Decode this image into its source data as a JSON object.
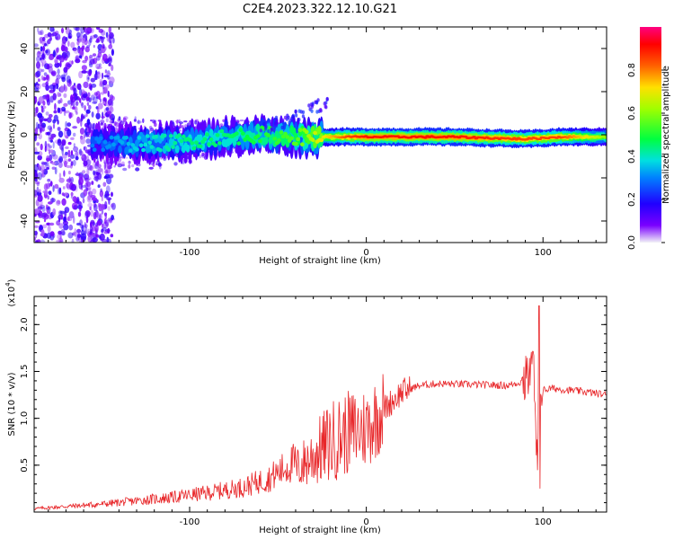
{
  "title": "C2E4.2023.322.12.10.G21",
  "colors": {
    "snr_line": "#e8272a",
    "axis": "#000000",
    "spectrogram_bg": "#ffffff"
  },
  "chart_data": [
    {
      "type": "heatmap",
      "title": "C2E4.2023.322.12.10.G21",
      "xlabel": "Height of straight line (km)",
      "ylabel": "Frequency (Hz)",
      "xlim": [
        -188,
        136
      ],
      "ylim": [
        -50,
        50
      ],
      "xticks": [
        -100,
        0,
        100
      ],
      "yticks": [
        -40,
        -20,
        0,
        20,
        40
      ],
      "colorbar": {
        "label": "Normalized spectral amplitude",
        "range": [
          0.0,
          1.0
        ],
        "ticks": [
          0.0,
          0.2,
          0.4,
          0.6,
          0.8
        ],
        "colormap": "rainbow (purple-blue-cyan-green-yellow-red-magenta)"
      },
      "ridge": {
        "description": "main spectral ridge near 0 Hz",
        "points": [
          {
            "x": -150,
            "y": -4,
            "amp": 0.3
          },
          {
            "x": -120,
            "y": -4,
            "amp": 0.4
          },
          {
            "x": -100,
            "y": -3,
            "amp": 0.45
          },
          {
            "x": -80,
            "y": -1,
            "amp": 0.45
          },
          {
            "x": -60,
            "y": 0,
            "amp": 0.5
          },
          {
            "x": -40,
            "y": -1,
            "amp": 0.55
          },
          {
            "x": -25,
            "y": -1,
            "amp": 0.7
          },
          {
            "x": -10,
            "y": -1,
            "amp": 0.85
          },
          {
            "x": 0,
            "y": -1,
            "amp": 0.9
          },
          {
            "x": 50,
            "y": -1,
            "amp": 0.9
          },
          {
            "x": 90,
            "y": -2,
            "amp": 0.85
          },
          {
            "x": 110,
            "y": -1,
            "amp": 0.85
          },
          {
            "x": 136,
            "y": -1,
            "amp": 0.6
          }
        ]
      }
    },
    {
      "type": "line",
      "xlabel": "Height of straight line (km)",
      "ylabel": "SNR (10 * v/v)",
      "y_scale_label": "(x10",
      "y_scale_exponent": "4",
      "xlim": [
        -188,
        136
      ],
      "ylim": [
        0,
        2.3
      ],
      "xticks": [
        -100,
        0,
        100
      ],
      "yticks": [
        0.5,
        1.0,
        1.5,
        2.0
      ],
      "ytick_labels": [
        "0.5",
        "1.0",
        "1.5",
        "2.0"
      ],
      "series": [
        {
          "x": [
            -188,
            -170,
            -150,
            -130,
            -110,
            -90,
            -70,
            -55,
            -40,
            -30,
            -20,
            -10,
            0,
            10,
            20,
            30,
            40,
            60,
            80,
            90,
            95,
            97,
            98,
            99,
            100,
            105,
            115,
            125,
            136
          ],
          "y": [
            0.03,
            0.05,
            0.07,
            0.1,
            0.13,
            0.17,
            0.22,
            0.3,
            0.45,
            0.6,
            0.75,
            0.85,
            0.9,
            1.1,
            1.28,
            1.35,
            1.37,
            1.36,
            1.35,
            1.4,
            1.55,
            0.25,
            2.2,
            1.1,
            1.3,
            1.32,
            1.3,
            1.28,
            1.25
          ]
        }
      ]
    }
  ]
}
